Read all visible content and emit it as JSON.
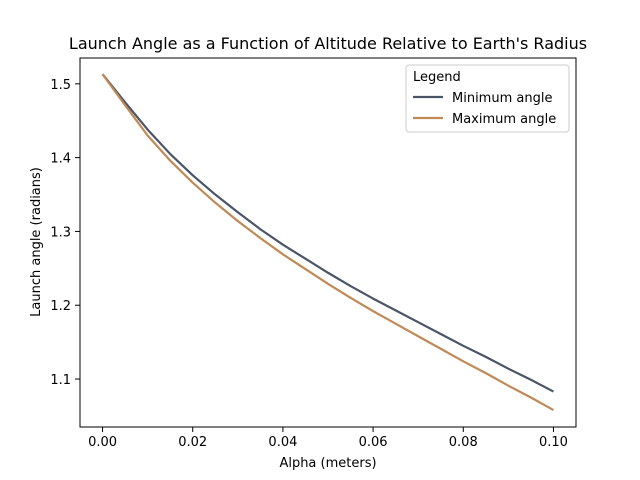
{
  "chart_data": {
    "type": "line",
    "title": "Launch Angle as a Function of Altitude Relative to Earth's Radius",
    "xlabel": "Alpha (meters)",
    "ylabel": "Launch angle (radians)",
    "xlim": [
      -0.005,
      0.105
    ],
    "ylim": [
      1.035,
      1.535
    ],
    "xticks": [
      0.0,
      0.02,
      0.04,
      0.06,
      0.08,
      0.1
    ],
    "xtick_labels": [
      "0.00",
      "0.02",
      "0.04",
      "0.06",
      "0.08",
      "0.10"
    ],
    "yticks": [
      1.1,
      1.2,
      1.3,
      1.4,
      1.5
    ],
    "ytick_labels": [
      "1.1",
      "1.2",
      "1.3",
      "1.4",
      "1.5"
    ],
    "grid": false,
    "legend": {
      "title": "Legend",
      "placement": "top-right"
    },
    "x": [
      0.0,
      0.005,
      0.01,
      0.015,
      0.02,
      0.025,
      0.03,
      0.035,
      0.04,
      0.045,
      0.05,
      0.055,
      0.06,
      0.065,
      0.07,
      0.075,
      0.08,
      0.085,
      0.09,
      0.095,
      0.1
    ],
    "series": [
      {
        "name": "Minimum angle",
        "color": "#4a5568",
        "values": [
          1.513,
          1.475,
          1.438,
          1.405,
          1.376,
          1.35,
          1.326,
          1.303,
          1.282,
          1.263,
          1.244,
          1.226,
          1.209,
          1.193,
          1.177,
          1.161,
          1.145,
          1.13,
          1.114,
          1.099,
          1.083
        ]
      },
      {
        "name": "Maximum angle",
        "color": "#c08a57",
        "values": [
          1.513,
          1.471,
          1.43,
          1.396,
          1.366,
          1.339,
          1.314,
          1.291,
          1.269,
          1.249,
          1.229,
          1.21,
          1.192,
          1.175,
          1.158,
          1.141,
          1.124,
          1.108,
          1.091,
          1.075,
          1.058
        ]
      }
    ]
  }
}
